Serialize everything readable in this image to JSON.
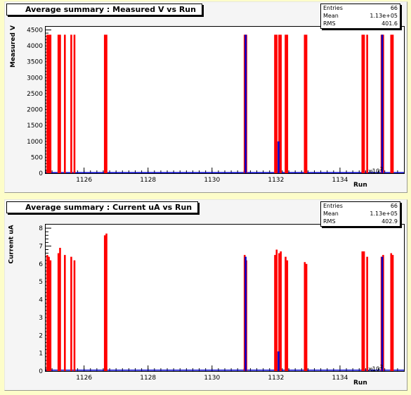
{
  "chart_data": [
    {
      "type": "bar",
      "title": "Average summary : Measured V vs Run",
      "xlabel": "Run",
      "ylabel": "Measured V",
      "x_multiplier": "x10",
      "x_multiplier_exp": "2",
      "xlim": [
        1124.8,
        1136.0
      ],
      "ylim": [
        0,
        4600
      ],
      "xticks": [
        1126,
        1128,
        1130,
        1132,
        1134
      ],
      "yticks": [
        0,
        500,
        1000,
        1500,
        2000,
        2500,
        3000,
        3500,
        4000,
        4500
      ],
      "stats": {
        "entries_label": "Entries",
        "entries": "66",
        "mean_label": "Mean",
        "mean": "1.13e+05",
        "rms_label": "RMS",
        "rms": "401.6"
      },
      "series": [
        {
          "color": "#ff0000",
          "points": [
            [
              1124.85,
              4350
            ],
            [
              1124.9,
              4350
            ],
            [
              1124.95,
              4350
            ],
            [
              1125.2,
              4350
            ],
            [
              1125.25,
              4350
            ],
            [
              1125.4,
              4350
            ],
            [
              1125.6,
              4350
            ],
            [
              1125.7,
              4350
            ],
            [
              1126.65,
              4350
            ],
            [
              1126.7,
              4350
            ],
            [
              1131.02,
              4350
            ],
            [
              1131.07,
              4350
            ],
            [
              1131.97,
              4350
            ],
            [
              1132.02,
              4350
            ],
            [
              1132.1,
              4350
            ],
            [
              1132.15,
              4350
            ],
            [
              1132.3,
              4350
            ],
            [
              1132.35,
              4350
            ],
            [
              1132.9,
              4350
            ],
            [
              1132.95,
              4350
            ],
            [
              1134.7,
              4350
            ],
            [
              1134.75,
              4350
            ],
            [
              1134.85,
              4350
            ],
            [
              1135.3,
              4350
            ],
            [
              1135.35,
              4350
            ],
            [
              1135.6,
              4350
            ],
            [
              1135.65,
              4350
            ]
          ]
        },
        {
          "color": "#0000cc",
          "points": [
            [
              1131.05,
              4350
            ],
            [
              1132.08,
              1000
            ],
            [
              1135.32,
              4350
            ]
          ]
        }
      ],
      "baseline": 20
    },
    {
      "type": "bar",
      "title": "Average summary : Current uA vs Run",
      "xlabel": "Run",
      "ylabel": "Current uA",
      "x_multiplier": "x10",
      "x_multiplier_exp": "2",
      "xlim": [
        1124.8,
        1136.0
      ],
      "ylim": [
        0,
        8.2
      ],
      "xticks": [
        1126,
        1128,
        1130,
        1132,
        1134
      ],
      "yticks": [
        0,
        1,
        2,
        3,
        4,
        5,
        6,
        7,
        8
      ],
      "stats": {
        "entries_label": "Entries",
        "entries": "66",
        "mean_label": "Mean",
        "mean": "1.13e+05",
        "rms_label": "RMS",
        "rms": "402.9"
      },
      "series": [
        {
          "color": "#ff0000",
          "points": [
            [
              1124.85,
              6.5
            ],
            [
              1124.9,
              6.4
            ],
            [
              1124.95,
              6.2
            ],
            [
              1125.2,
              6.6
            ],
            [
              1125.25,
              6.9
            ],
            [
              1125.4,
              6.5
            ],
            [
              1125.6,
              6.4
            ],
            [
              1125.7,
              6.2
            ],
            [
              1126.65,
              7.6
            ],
            [
              1126.7,
              7.7
            ],
            [
              1131.02,
              6.5
            ],
            [
              1131.07,
              6.2
            ],
            [
              1131.97,
              6.5
            ],
            [
              1132.02,
              6.8
            ],
            [
              1132.1,
              6.6
            ],
            [
              1132.15,
              6.7
            ],
            [
              1132.3,
              6.4
            ],
            [
              1132.35,
              6.2
            ],
            [
              1132.9,
              6.1
            ],
            [
              1132.95,
              6.0
            ],
            [
              1134.7,
              6.7
            ],
            [
              1134.75,
              6.7
            ],
            [
              1134.85,
              6.4
            ],
            [
              1135.3,
              6.4
            ],
            [
              1135.35,
              6.5
            ],
            [
              1135.6,
              6.6
            ],
            [
              1135.65,
              6.5
            ]
          ]
        },
        {
          "color": "#0000cc",
          "points": [
            [
              1131.05,
              6.4
            ],
            [
              1132.08,
              1.1
            ],
            [
              1135.32,
              6.4
            ]
          ]
        }
      ],
      "baseline": 0.05
    }
  ]
}
